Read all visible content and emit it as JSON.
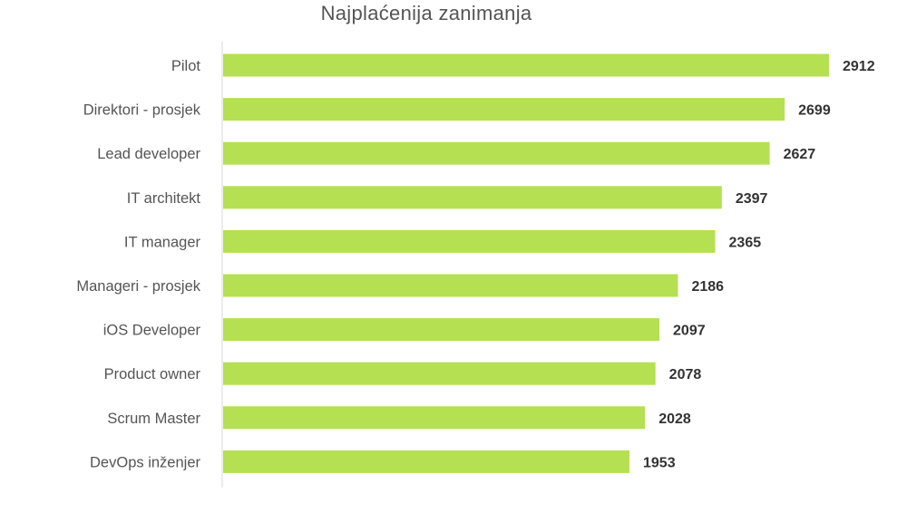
{
  "chart_data": {
    "type": "bar",
    "orientation": "horizontal",
    "title": "Najplaćenija zanimanja",
    "categories": [
      "Pilot",
      "Direktori - prosjek",
      "Lead developer",
      "IT architekt",
      "IT manager",
      "Manageri - prosjek",
      "iOS Developer",
      "Product owner",
      "Scrum Master",
      "DevOps inženjer"
    ],
    "values": [
      2912,
      2699,
      2627,
      2397,
      2365,
      2186,
      2097,
      2078,
      2028,
      1953
    ],
    "bar_color": "#b5e052",
    "value_label_color": "#333333",
    "category_label_color": "#555555",
    "axis_color": "#d9d9d9",
    "xlim": [
      0,
      2912
    ],
    "grid": false,
    "legend": "none",
    "data_labels": true
  }
}
